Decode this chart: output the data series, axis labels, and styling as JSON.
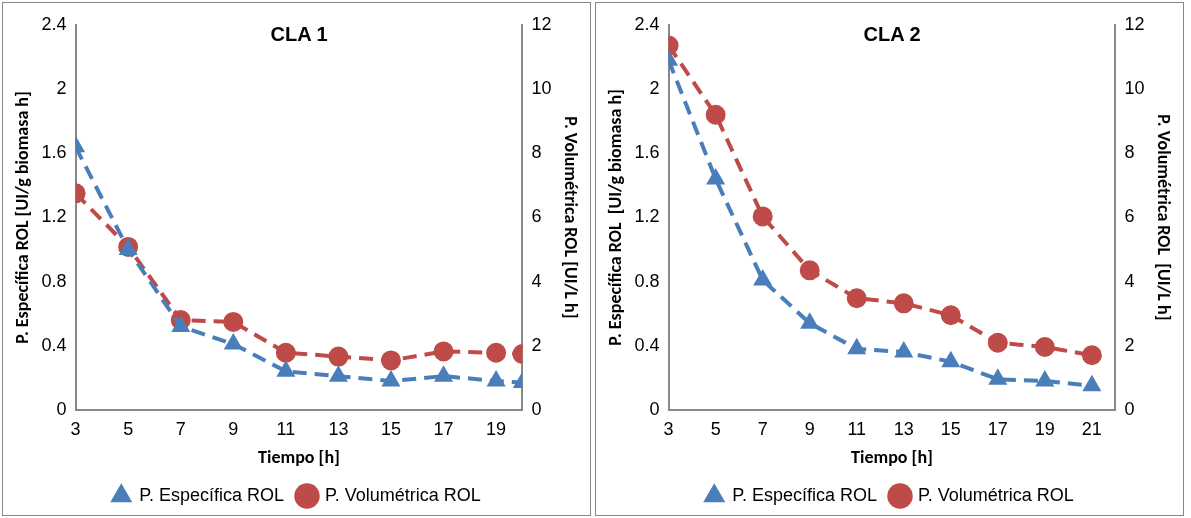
{
  "chart_data": [
    {
      "type": "line",
      "title": "CLA 1",
      "xlabel": "Tiempo [h]",
      "ylabel": "P. Específica ROL [UI/g biomasa h]",
      "y2label": "P. Volumétrica ROL [UI/L h]",
      "x": [
        3,
        5,
        7,
        9,
        11,
        13,
        15,
        17,
        19,
        20
      ],
      "xlim": [
        3,
        20
      ],
      "xticks": [
        3,
        5,
        7,
        9,
        11,
        13,
        15,
        17,
        19
      ],
      "ylim": [
        0,
        2.4
      ],
      "yticks": [
        0,
        0.4,
        0.8,
        1.2,
        1.6,
        2,
        2.4
      ],
      "y2lim": [
        0,
        12
      ],
      "y2ticks": [
        0,
        2,
        4,
        6,
        8,
        10,
        12
      ],
      "grid": false,
      "legend": "bottom",
      "line_style": "dashed",
      "series": [
        {
          "name": "P. Específica ROL",
          "color": "#4a7ebb",
          "marker": "triangle",
          "values": [
            1.64,
            1.0,
            0.52,
            0.41,
            0.24,
            0.21,
            0.18,
            0.21,
            0.18,
            0.17
          ]
        },
        {
          "name": "P. Volumétrica ROL",
          "color": "#be4b48",
          "marker": "circle",
          "axis": "y2",
          "values": [
            6.75,
            5.08,
            2.8,
            2.74,
            1.78,
            1.66,
            1.54,
            1.82,
            1.78,
            1.74
          ]
        }
      ]
    },
    {
      "type": "line",
      "title": "CLA 2",
      "xlabel": "Tiempo [h]",
      "ylabel": "P. Específica ROL  [UI/g biomasa h]",
      "y2label": "P. Volumétrica ROL  [UI/L h]",
      "x": [
        3,
        5,
        7,
        9,
        11,
        13,
        15,
        17,
        19,
        21
      ],
      "xlim": [
        3,
        22
      ],
      "xticks": [
        3,
        5,
        7,
        9,
        11,
        13,
        15,
        17,
        19,
        21
      ],
      "ylim": [
        0,
        2.4
      ],
      "yticks": [
        0,
        0.4,
        0.8,
        1.2,
        1.6,
        2,
        2.4
      ],
      "y2lim": [
        0,
        12
      ],
      "y2ticks": [
        0,
        2,
        4,
        6,
        8,
        10,
        12
      ],
      "grid": false,
      "legend": "bottom",
      "line_style": "dashed",
      "series": [
        {
          "name": "P. Específica ROL",
          "color": "#4a7ebb",
          "marker": "triangle",
          "values": [
            2.18,
            1.44,
            0.81,
            0.54,
            0.38,
            0.36,
            0.3,
            0.19,
            0.18,
            0.15
          ]
        },
        {
          "name": "P. Volumétrica ROL",
          "color": "#be4b48",
          "marker": "circle",
          "axis": "y2",
          "values": [
            11.36,
            9.2,
            6.03,
            4.35,
            3.48,
            3.32,
            2.95,
            2.09,
            1.96,
            1.7
          ]
        }
      ]
    }
  ]
}
